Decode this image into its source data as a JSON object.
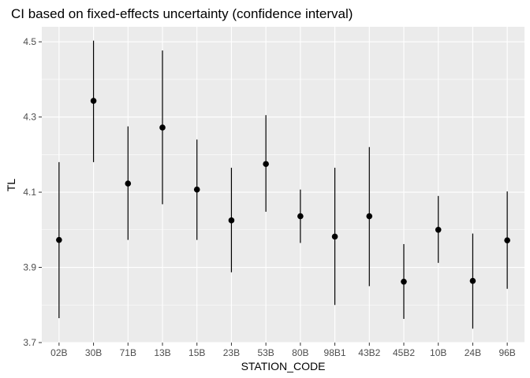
{
  "chart_data": {
    "type": "scatter",
    "title": "CI based on fixed-effects uncertainty (confidence interval)",
    "xlabel": "STATION_CODE",
    "ylabel": "TL",
    "ylim": [
      3.7,
      4.54
    ],
    "yticks": [
      3.7,
      3.9,
      4.1,
      4.3,
      4.5
    ],
    "ytick_labels": [
      "3.7",
      "3.9",
      "4.1",
      "4.3",
      "4.5"
    ],
    "grid": true,
    "colors": {
      "panel": "#ebebeb",
      "grid": "#ffffff",
      "marks": "#000000"
    },
    "points": [
      {
        "x": "02B",
        "y": 3.973,
        "lower": 3.765,
        "upper": 4.18
      },
      {
        "x": "30B",
        "y": 4.343,
        "lower": 4.18,
        "upper": 4.503
      },
      {
        "x": "71B",
        "y": 4.123,
        "lower": 3.973,
        "upper": 4.275
      },
      {
        "x": "13B",
        "y": 4.272,
        "lower": 4.068,
        "upper": 4.477
      },
      {
        "x": "15B",
        "y": 4.107,
        "lower": 3.973,
        "upper": 4.24
      },
      {
        "x": "23B",
        "y": 4.025,
        "lower": 3.887,
        "upper": 4.165
      },
      {
        "x": "53B",
        "y": 4.175,
        "lower": 4.048,
        "upper": 4.305
      },
      {
        "x": "80B",
        "y": 4.036,
        "lower": 3.965,
        "upper": 4.107
      },
      {
        "x": "98B1",
        "y": 3.982,
        "lower": 3.8,
        "upper": 4.165
      },
      {
        "x": "43B2",
        "y": 4.036,
        "lower": 3.85,
        "upper": 4.22
      },
      {
        "x": "45B2",
        "y": 3.862,
        "lower": 3.763,
        "upper": 3.962
      },
      {
        "x": "10B",
        "y": 4.0,
        "lower": 3.912,
        "upper": 4.09
      },
      {
        "x": "24B",
        "y": 3.864,
        "lower": 3.737,
        "upper": 3.99
      },
      {
        "x": "96B",
        "y": 3.972,
        "lower": 3.843,
        "upper": 4.102
      }
    ]
  }
}
